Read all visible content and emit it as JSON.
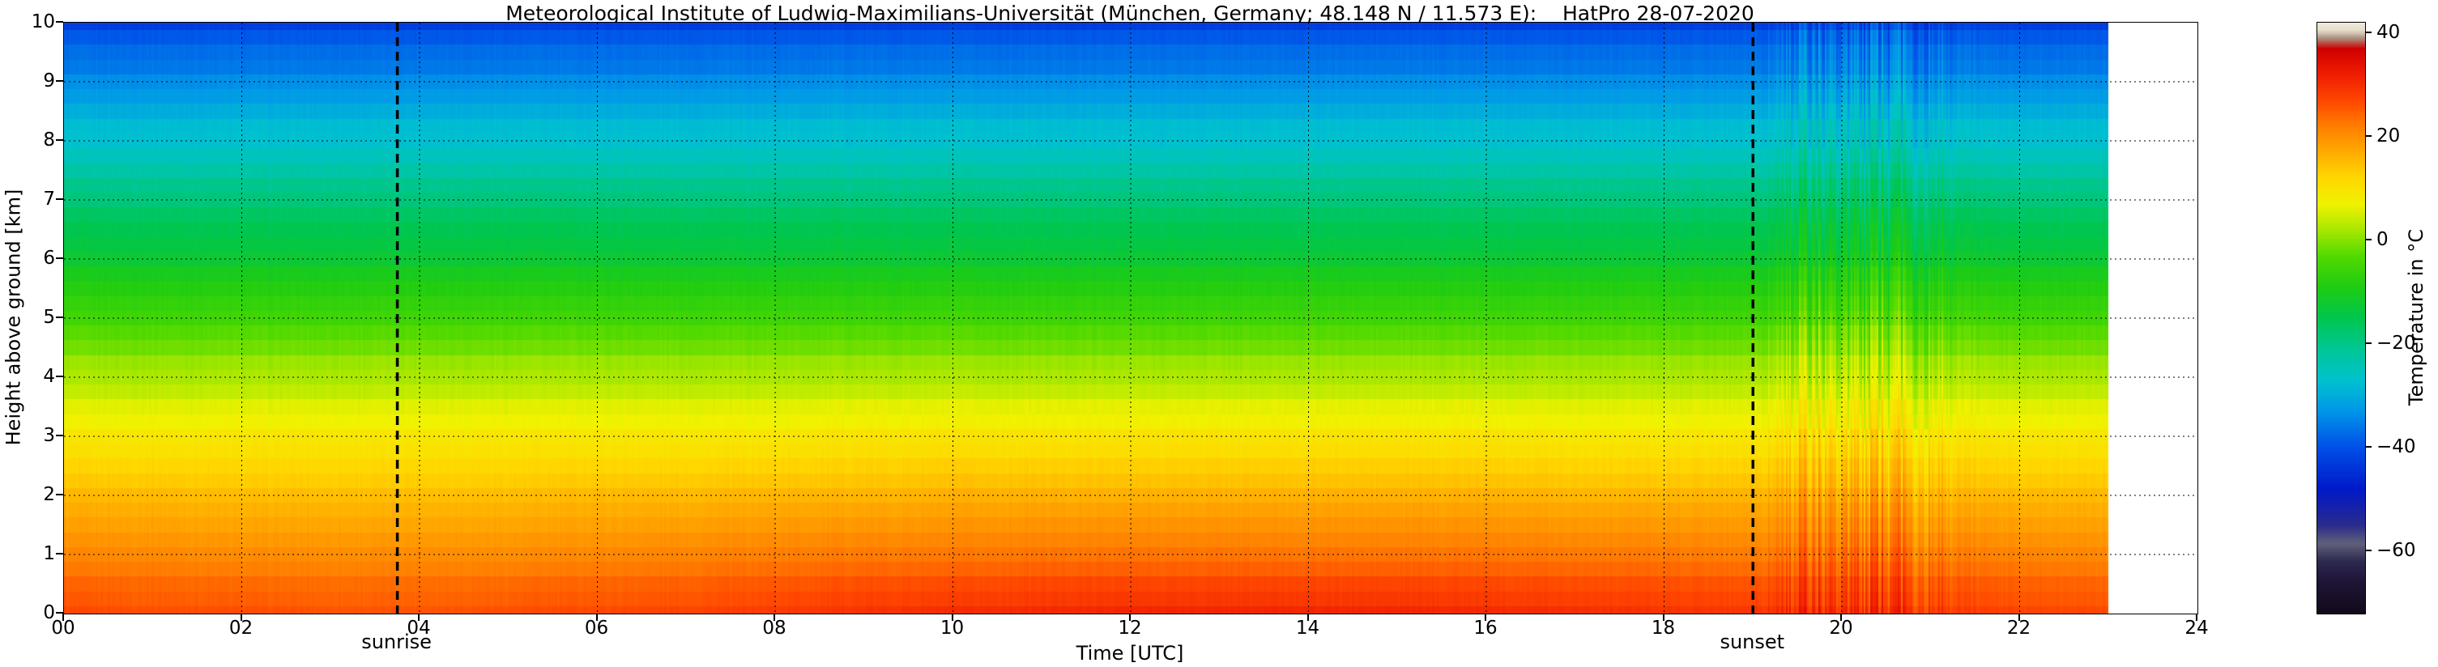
{
  "chart_data": {
    "type": "heatmap",
    "title": "Meteorological Institute of Ludwig-Maximilians-Universität (München, Germany; 48.148 N / 11.573 E):    HatPro 28-07-2020",
    "xlabel": "Time [UTC]",
    "ylabel": "Height above ground [km]",
    "xlim": [
      0,
      24
    ],
    "ylim": [
      0,
      10
    ],
    "grid": "dotted black at every labeled tick",
    "x_ticks": {
      "values": [
        0,
        2,
        4,
        6,
        8,
        10,
        12,
        14,
        16,
        18,
        20,
        22,
        24
      ],
      "labels": [
        "00",
        "02",
        "04",
        "06",
        "08",
        "10",
        "12",
        "14",
        "16",
        "18",
        "20",
        "22",
        "24"
      ]
    },
    "y_ticks": {
      "values": [
        0,
        1,
        2,
        3,
        4,
        5,
        6,
        7,
        8,
        9,
        10
      ],
      "labels": [
        "0",
        "1",
        "2",
        "3",
        "4",
        "5",
        "6",
        "7",
        "8",
        "9",
        "10"
      ]
    },
    "data_time_extent": [
      0,
      23
    ],
    "artifact_window_utc": [
      19.2,
      21.7
    ],
    "times_utc": [
      0,
      1,
      2,
      3,
      4,
      5,
      6,
      7,
      8,
      9,
      10,
      11,
      12,
      13,
      14,
      15,
      16,
      17,
      18,
      19,
      20,
      21,
      22,
      23
    ],
    "heights_km": [
      0,
      1,
      2,
      3,
      4,
      5,
      6,
      7,
      8,
      9,
      10
    ],
    "temperature_c_by_height": [
      [
        27,
        26.5,
        26.5,
        26,
        26,
        26.5,
        27,
        27.5,
        28.5,
        29.5,
        30,
        30.5,
        31,
        31,
        31,
        31,
        30.5,
        30,
        29.5,
        29,
        28.5,
        28,
        27.5,
        27
      ],
      [
        21,
        21,
        20.5,
        20.5,
        20.5,
        20.5,
        21,
        21.5,
        22,
        22.5,
        22.5,
        23,
        23,
        23,
        23,
        23,
        23,
        22.5,
        22.5,
        22,
        22,
        21.5,
        21.5,
        21
      ],
      [
        15,
        15,
        14.5,
        14.5,
        14.5,
        14.5,
        15,
        15,
        15.5,
        15.5,
        16,
        16,
        16,
        16,
        16,
        16,
        16,
        15.5,
        15.5,
        15.5,
        15.5,
        15,
        15,
        15
      ],
      [
        9,
        9,
        9,
        9,
        9,
        9,
        9,
        9,
        9,
        9.5,
        9.5,
        9.5,
        9.5,
        9.5,
        9.5,
        9.5,
        9.5,
        9,
        9,
        9,
        9,
        9,
        9,
        9
      ],
      [
        2.5,
        2.5,
        2.5,
        2.5,
        2.5,
        2.5,
        2.5,
        2.5,
        2.5,
        2.5,
        2.5,
        2.5,
        2.5,
        2.5,
        2.5,
        2.5,
        2.5,
        2.5,
        2.5,
        2.5,
        2.5,
        2.5,
        2.5,
        2.5
      ],
      [
        -5,
        -5,
        -5,
        -5,
        -5,
        -5,
        -5,
        -5,
        -5,
        -5,
        -5,
        -5,
        -5,
        -5,
        -5,
        -5,
        -5,
        -5,
        -5,
        -5,
        -5,
        -5,
        -5,
        -5
      ],
      [
        -12,
        -12,
        -12,
        -12,
        -12,
        -12,
        -12,
        -12,
        -12,
        -12,
        -12,
        -12,
        -12,
        -12,
        -12,
        -12,
        -12,
        -12,
        -12,
        -12,
        -12,
        -12,
        -12,
        -12
      ],
      [
        -19,
        -19,
        -19,
        -19,
        -19,
        -19,
        -19,
        -19,
        -19,
        -19,
        -19,
        -19,
        -19,
        -19,
        -19,
        -19,
        -19,
        -19,
        -19,
        -19,
        -19,
        -19,
        -19,
        -19
      ],
      [
        -26.5,
        -26.5,
        -26.5,
        -26.5,
        -26.5,
        -26.5,
        -26.5,
        -26.5,
        -26.5,
        -26.5,
        -26.5,
        -26.5,
        -26.5,
        -26.5,
        -26.5,
        -26.5,
        -26.5,
        -26.5,
        -26.5,
        -26.5,
        -26.5,
        -26.5,
        -26.5,
        -26.5
      ],
      [
        -34,
        -34,
        -34,
        -34,
        -34,
        -34,
        -34,
        -34,
        -34,
        -34,
        -34,
        -34,
        -34,
        -34,
        -34,
        -34,
        -34,
        -34,
        -34,
        -34,
        -34,
        -34,
        -34,
        -34
      ],
      [
        -41.5,
        -41.5,
        -41.5,
        -41.5,
        -41.5,
        -41.5,
        -41.5,
        -41.5,
        -41.5,
        -41.5,
        -41.5,
        -41.5,
        -41.5,
        -41.5,
        -41.5,
        -41.5,
        -41.5,
        -41.5,
        -41.5,
        -41.5,
        -41.5,
        -41.5,
        -41.5,
        -41.5
      ]
    ],
    "annotations": {
      "sunrise": {
        "label": "sunrise",
        "time_utc": 3.75
      },
      "sunset": {
        "label": "sunset",
        "time_utc": 19.0
      }
    },
    "colorbar": {
      "label": "Temperature in °C",
      "tick_values": [
        40,
        20,
        0,
        -20,
        -40,
        -60
      ],
      "tick_labels": [
        "40",
        "20",
        "0",
        "−20",
        "−40",
        "−60"
      ],
      "range": [
        -72,
        42
      ],
      "colormap_stops": [
        {
          "t": -72,
          "c": "#120a1a"
        },
        {
          "t": -66,
          "c": "#201436"
        },
        {
          "t": -62,
          "c": "#2c2850"
        },
        {
          "t": -58.5,
          "c": "#60607a"
        },
        {
          "t": -55,
          "c": "#2b2b8c"
        },
        {
          "t": -48,
          "c": "#0019c8"
        },
        {
          "t": -40,
          "c": "#004fe8"
        },
        {
          "t": -33,
          "c": "#0096e8"
        },
        {
          "t": -27,
          "c": "#00c2cf"
        },
        {
          "t": -21,
          "c": "#00c695"
        },
        {
          "t": -15,
          "c": "#00c64e"
        },
        {
          "t": -9,
          "c": "#1ecc12"
        },
        {
          "t": -3,
          "c": "#52da00"
        },
        {
          "t": 2,
          "c": "#a8e800"
        },
        {
          "t": 7,
          "c": "#f0f200"
        },
        {
          "t": 12,
          "c": "#ffd800"
        },
        {
          "t": 17,
          "c": "#ffab00"
        },
        {
          "t": 22,
          "c": "#ff7d00"
        },
        {
          "t": 27,
          "c": "#ff4600"
        },
        {
          "t": 32,
          "c": "#ef1d00"
        },
        {
          "t": 37,
          "c": "#d00000"
        },
        {
          "t": 39,
          "c": "#ab9180"
        },
        {
          "t": 40.5,
          "c": "#e6ddc9"
        },
        {
          "t": 42,
          "c": "#f0ead9"
        }
      ]
    }
  }
}
